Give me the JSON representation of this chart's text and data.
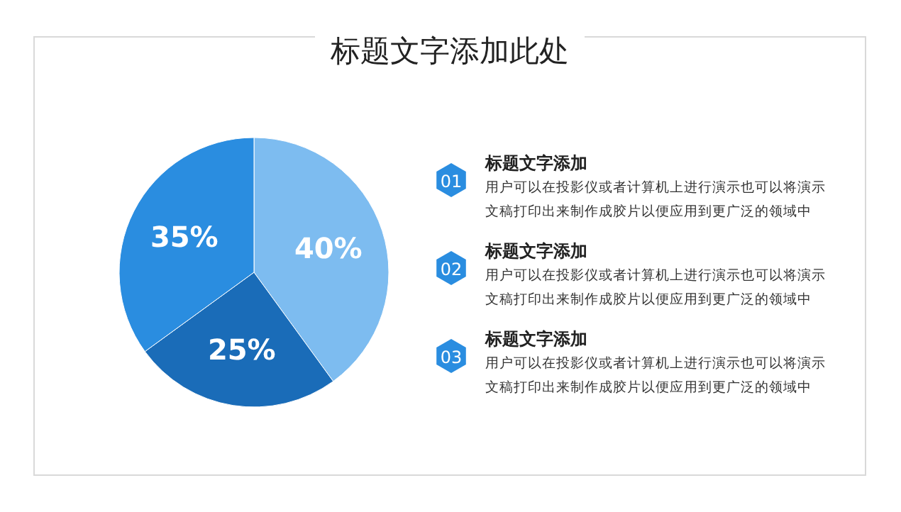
{
  "chart_data": {
    "type": "pie",
    "title": "标题文字添加此处",
    "categories": [
      null,
      null,
      null
    ],
    "values": [
      40,
      25,
      35
    ],
    "colors": [
      "#7dbcf0",
      "#1a6cb8",
      "#2a8de0"
    ],
    "value_labels": [
      "40%",
      "25%",
      "35%"
    ],
    "annotations": [
      "01",
      "标题文字添加",
      "用户可以在投影仪或者计算机上进行演示也可以将演示文稿打印出来制作成胶片以便应用到更广泛的领域中",
      "02",
      "标题文字添加",
      "用户可以在投影仪或者计算机上进行演示也可以将演示文稿打印出来制作成胶片以便应用到更广泛的领域中",
      "03",
      "标题文字添加",
      "用户可以在投影仪或者计算机上进行演示也可以将演示文稿打印出来制作成胶片以便应用到更广泛的领域中"
    ]
  }
}
